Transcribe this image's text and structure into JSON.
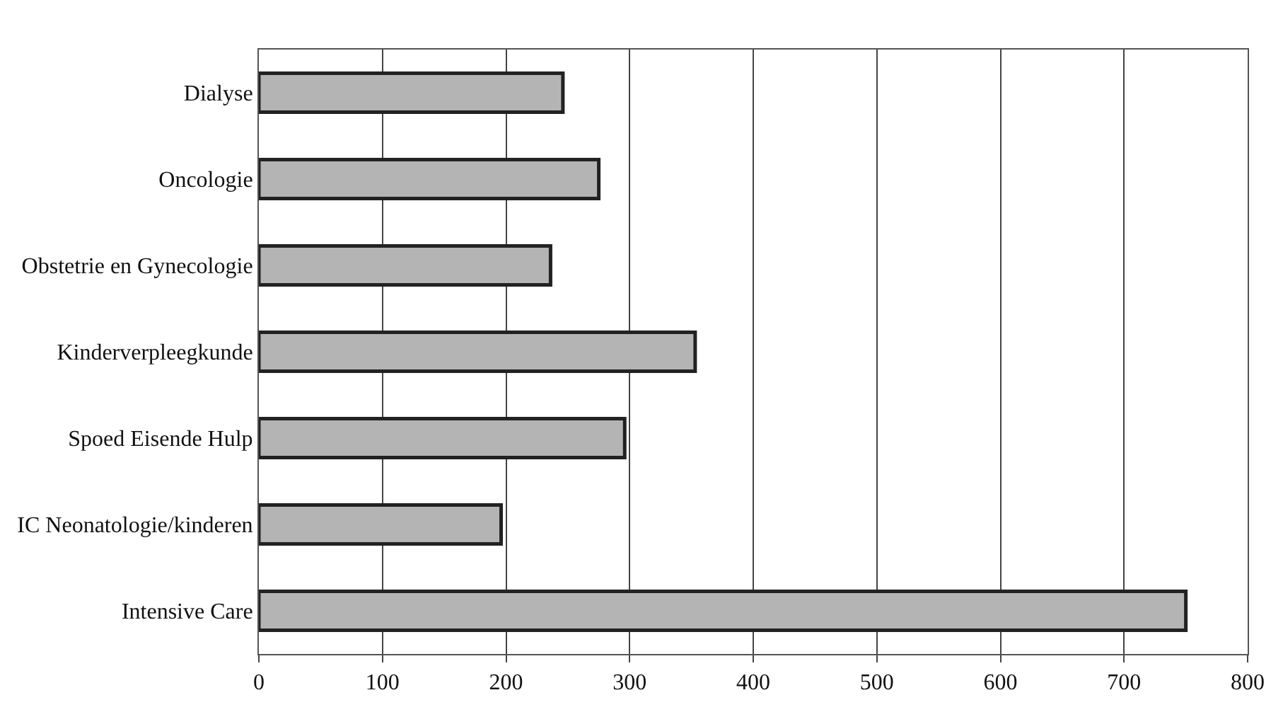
{
  "chart_data": {
    "type": "bar",
    "orientation": "horizontal",
    "categories": [
      "Dialyse",
      "Oncologie",
      "Obstetrie en Gynecologie",
      "Kinderverpleegkunde",
      "Spoed Eisende Hulp",
      "IC Neonatologie/kinderen",
      "Intensive Care"
    ],
    "values": [
      246,
      275,
      236,
      353,
      296,
      196,
      750
    ],
    "color": "#b4b4b4",
    "xlim": [
      0,
      800
    ],
    "xticks": [
      0,
      100,
      200,
      300,
      400,
      500,
      600,
      700,
      800
    ],
    "grid": "x",
    "legend": false
  }
}
